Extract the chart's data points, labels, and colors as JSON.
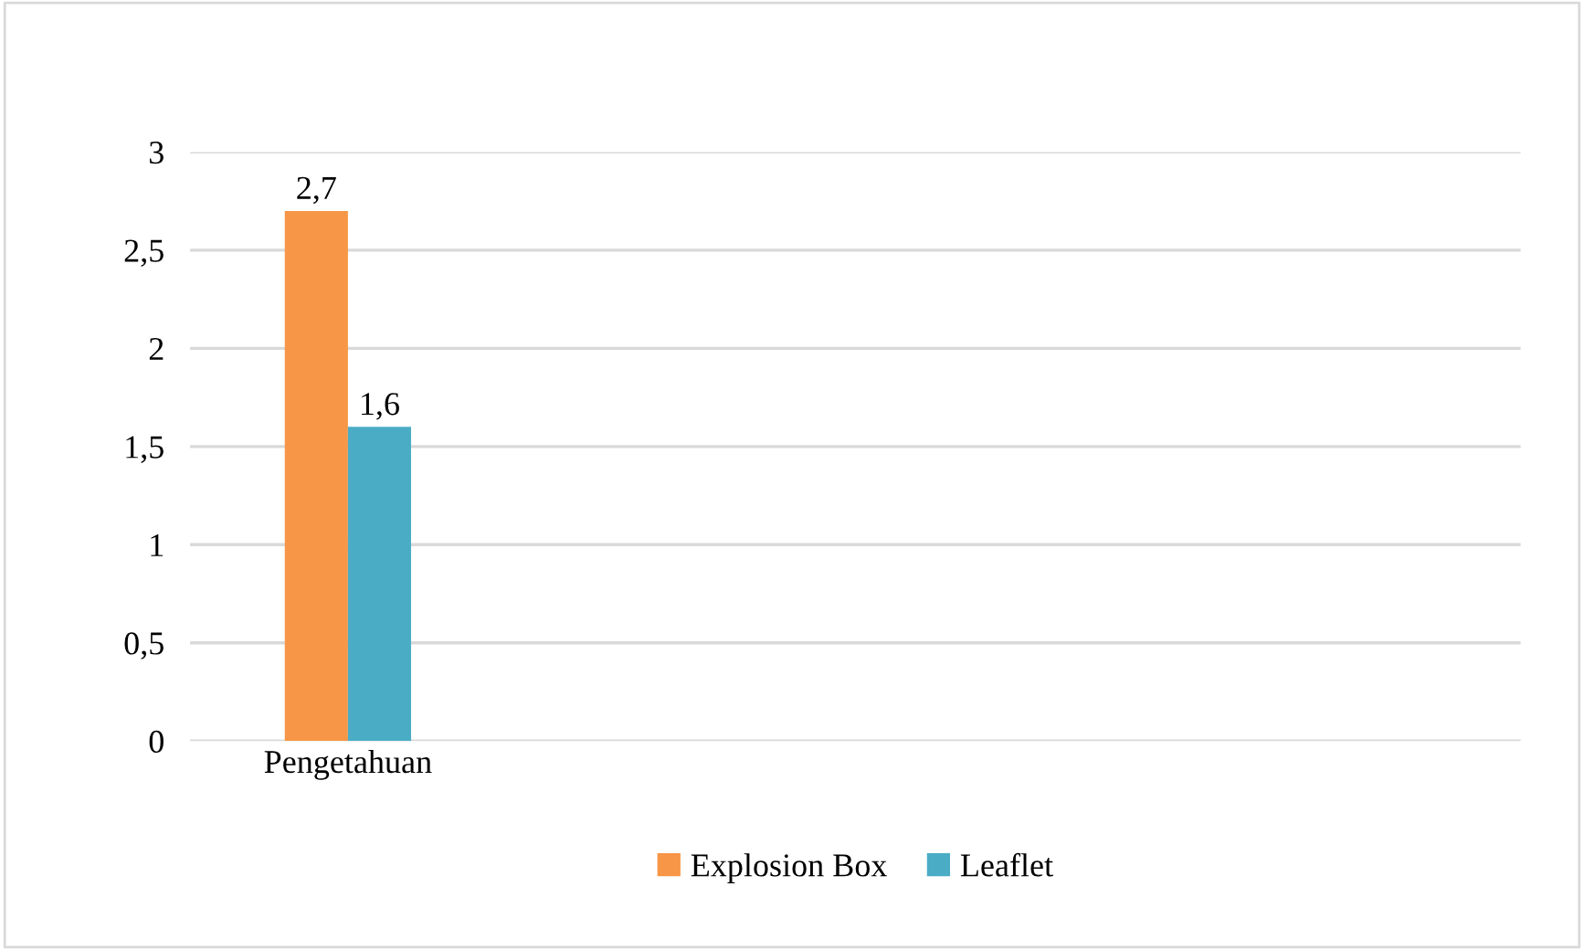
{
  "chart_data": {
    "type": "bar",
    "categories": [
      "Pengetahuan"
    ],
    "series": [
      {
        "name": "Explosion Box",
        "color": "#f79646",
        "values": [
          2.7
        ],
        "value_labels": [
          "2,7"
        ]
      },
      {
        "name": "Leaflet",
        "color": "#4bacc6",
        "values": [
          1.6
        ],
        "value_labels": [
          "1,6"
        ]
      }
    ],
    "ylim": [
      0,
      3
    ],
    "yticks": [
      0,
      {
        "value": 0.5,
        "label": "0,5"
      },
      1,
      {
        "value": 1.5,
        "label": "1,5"
      },
      2,
      {
        "value": 2.5,
        "label": "2,5"
      },
      3
    ],
    "grid": "y",
    "legend": "bottom"
  }
}
